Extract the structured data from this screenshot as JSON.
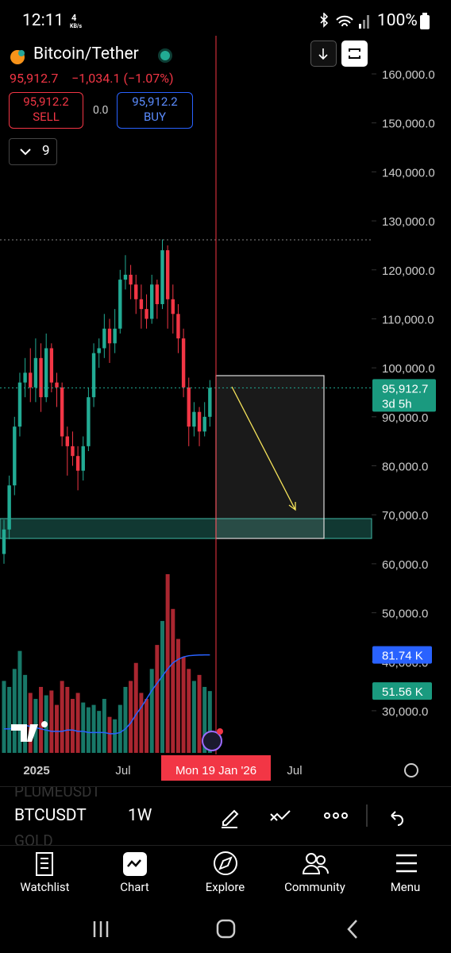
{
  "status_bar": {
    "time": "12:11",
    "net_speed": "4",
    "net_unit": "KB/s",
    "battery": "100%"
  },
  "header": {
    "symbol": "Bitcoin/Tether",
    "price": "95,912.7",
    "change": "−1,034.1 (−1.07%)",
    "sell_price": "95,912.2",
    "sell_label": "SELL",
    "spread": "0.0",
    "buy_price": "95,912.2",
    "buy_label": "BUY",
    "indicator_count": "9"
  },
  "chart_data": {
    "type": "candlestick",
    "open": [
      62000,
      67000,
      76000,
      88000,
      97000,
      99000,
      96000,
      102000,
      94000,
      104000,
      97000,
      96000,
      86000,
      84000,
      82000,
      79000,
      84000,
      94000,
      103000,
      104000,
      108000,
      105000,
      108000,
      118000,
      119000,
      117000,
      114000,
      112000,
      110000,
      117000,
      113000,
      124000,
      114000,
      111000,
      106000,
      96000,
      88000,
      91000,
      87000,
      90000
    ],
    "high": [
      69000,
      78000,
      90000,
      99000,
      102000,
      104000,
      106000,
      105000,
      107000,
      105000,
      99000,
      97000,
      88000,
      87000,
      84000,
      86000,
      96000,
      105000,
      106000,
      111000,
      110000,
      112000,
      120000,
      123000,
      121000,
      119000,
      117000,
      115000,
      119000,
      118000,
      126200,
      125000,
      117000,
      113000,
      108000,
      98000,
      93000,
      92000,
      93000,
      97500
    ],
    "low": [
      60000,
      65000,
      74000,
      86000,
      94000,
      93000,
      93000,
      91000,
      93000,
      95000,
      92000,
      84000,
      78000,
      80000,
      75000,
      77000,
      83000,
      92000,
      100000,
      102000,
      101000,
      103000,
      107000,
      116000,
      114000,
      111000,
      108000,
      108000,
      109000,
      110000,
      112000,
      108000,
      107000,
      103000,
      94000,
      84000,
      86000,
      84000,
      86000,
      88000
    ],
    "close": [
      67000,
      76000,
      88000,
      97000,
      99000,
      96000,
      102000,
      94000,
      104000,
      97000,
      96000,
      86000,
      84000,
      82000,
      79000,
      84000,
      94000,
      103000,
      104000,
      108000,
      105000,
      108000,
      118000,
      119000,
      117000,
      114000,
      112000,
      110000,
      117000,
      113000,
      124000,
      114000,
      111000,
      106000,
      96000,
      88000,
      91000,
      87000,
      90000,
      95912.7
    ],
    "volume": [
      60,
      55,
      70,
      85,
      65,
      50,
      45,
      55,
      48,
      52,
      40,
      60,
      55,
      45,
      50,
      42,
      38,
      40,
      35,
      45,
      30,
      28,
      40,
      55,
      60,
      75,
      50,
      45,
      70,
      90,
      110,
      149,
      120,
      95,
      80,
      70,
      60,
      65,
      55,
      51.56
    ],
    "volume_ma": [
      20,
      20,
      21,
      22,
      23,
      22,
      21,
      20,
      19,
      18,
      18,
      18,
      19,
      19,
      18,
      18,
      17,
      17,
      17,
      17,
      16,
      16,
      17,
      20,
      25,
      32,
      38,
      45,
      52,
      58,
      64,
      70,
      75,
      78,
      80,
      81,
      81.4,
      81.6,
      81.7,
      81.74
    ],
    "ylim": [
      21400,
      168600
    ],
    "yticks": [
      {
        "value": 160000,
        "label": "160,000.0"
      },
      {
        "value": 150000,
        "label": "150,000.0"
      },
      {
        "value": 140000,
        "label": "140,000.0"
      },
      {
        "value": 130000,
        "label": "130,000.0"
      },
      {
        "value": 120000,
        "label": "120,000.0"
      },
      {
        "value": 110000,
        "label": "110,000.0"
      },
      {
        "value": 100000,
        "label": "100,000.0"
      },
      {
        "value": 90000,
        "label": "90,000.0"
      },
      {
        "value": 80000,
        "label": "80,000.0"
      },
      {
        "value": 70000,
        "label": "70,000.0"
      },
      {
        "value": 60000,
        "label": "60,000.0"
      },
      {
        "value": 50000,
        "label": "50,000.0"
      },
      {
        "value": 40000,
        "label": "40,000.0"
      },
      {
        "value": 30000,
        "label": "30,000.0"
      }
    ],
    "last_price": {
      "value": 95912.7,
      "label": "95,912.7"
    },
    "countdown": "3d 5h",
    "volume_ma_label": "81.74 K",
    "volume_label": "51.56 K",
    "x_labels": [
      "2025",
      "Jul",
      "Mon 19 Jan '26",
      "Jul"
    ],
    "up_color": "#22ab94",
    "down_color": "#f23645",
    "ma_color": "#2962ff"
  },
  "toolbar": {
    "symbol_above": "PLUMEUSDT",
    "symbol": "BTCUSDT",
    "interval": "1W",
    "symbol_below": "GOLD"
  },
  "nav": [
    "Watchlist",
    "Chart",
    "Explore",
    "Community",
    "Menu"
  ]
}
